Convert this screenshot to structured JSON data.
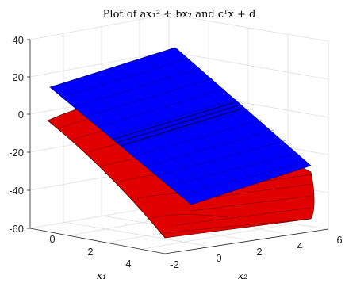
{
  "chart_data": {
    "type": "surface",
    "title": "Plot of ax₁² + bx₂ and cᵀx + d",
    "xlabel": "x₁",
    "ylabel": "x₂",
    "zlabel": "",
    "x_ticks": [
      "0",
      "2",
      "4"
    ],
    "y_ticks": [
      "-2",
      "0",
      "2",
      "4",
      "6"
    ],
    "z_ticks": [
      "40",
      "20",
      "0",
      "-20",
      "-40",
      "-60"
    ],
    "xlim": [
      -1,
      5.5
    ],
    "ylim": [
      -2,
      6
    ],
    "zlim": [
      -60,
      40
    ],
    "grid": true,
    "series": [
      {
        "kind": "paraboloid",
        "color": "#e00000",
        "corners": {
          "x1=-0.5,x2=-2": 0,
          "x1=-0.5,x2=6": -10,
          "x1=5,x2=-2": -52,
          "x1=5,x2=6": -38
        }
      },
      {
        "kind": "plane",
        "color": "#0000ff",
        "corners": {
          "x1=-0.5,x2=-2": 14,
          "x1=-0.5,x2=6": 28,
          "x1=5,x2=-2": -20,
          "x1=5,x2=6": -12
        }
      }
    ]
  }
}
